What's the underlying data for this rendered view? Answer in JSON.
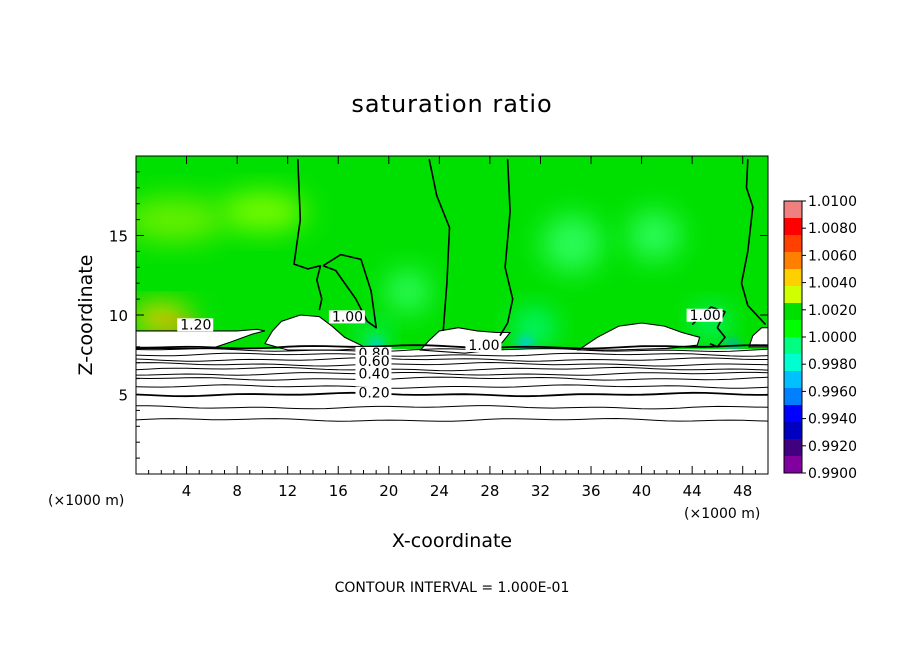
{
  "chart_data": {
    "type": "heatmap",
    "title": "saturation ratio",
    "xlabel": "X-coordinate",
    "ylabel": "Z-coordinate",
    "x_unit_left": "(×1000 m)",
    "x_unit_right": "(×1000 m)",
    "xlim": [
      0,
      50
    ],
    "ylim": [
      0,
      20
    ],
    "xticks": [
      4,
      8,
      12,
      16,
      20,
      24,
      28,
      32,
      36,
      40,
      44,
      48
    ],
    "yticks": [
      5,
      10,
      15
    ],
    "footer": "CONTOUR INTERVAL = 1.000E-01",
    "colorbar": {
      "min": 0.99,
      "max": 1.01,
      "labels": [
        "1.0100",
        "1.0080",
        "1.0060",
        "1.0040",
        "1.0020",
        "1.0000",
        "0.9980",
        "0.9960",
        "0.9940",
        "0.9920",
        "0.9900"
      ],
      "colors": [
        "#f08080",
        "#ff0000",
        "#ff4000",
        "#ff8000",
        "#ffd000",
        "#d0ff00",
        "#00e000",
        "#00ff00",
        "#00ff80",
        "#00ffd0",
        "#00c0ff",
        "#0080ff",
        "#0000ff",
        "#0000c0",
        "#400080",
        "#8000a0"
      ]
    },
    "contour_labels": [
      {
        "text": "1.20",
        "x": 3.5,
        "z": 9.1
      },
      {
        "text": "1.00",
        "x": 15.5,
        "z": 9.6
      },
      {
        "text": "1.00",
        "x": 26.3,
        "z": 7.8
      },
      {
        "text": "1.00",
        "x": 43.8,
        "z": 9.7
      },
      {
        "text": "0.80",
        "x": 17.6,
        "z": 7.3
      },
      {
        "text": "0.60",
        "x": 17.6,
        "z": 6.8
      },
      {
        "text": "0.40",
        "x": 17.6,
        "z": 6.0
      },
      {
        "text": "0.20",
        "x": 17.6,
        "z": 4.8
      }
    ],
    "horizontal_contours_z": [
      3.4,
      4.2,
      5.0,
      5.5,
      6.0,
      6.3,
      6.6,
      6.9,
      7.2,
      7.5,
      7.8,
      8.0
    ],
    "vertical_contours": [
      {
        "points": [
          [
            12.8,
            19.8
          ],
          [
            13.0,
            16
          ],
          [
            12.5,
            13.2
          ],
          [
            13.6,
            12.9
          ],
          [
            14.6,
            13.1
          ],
          [
            14.3,
            12.2
          ],
          [
            14.7,
            11
          ],
          [
            14.5,
            10.3
          ]
        ]
      },
      {
        "points": [
          [
            14.8,
            13.1
          ],
          [
            16.2,
            13.8
          ],
          [
            17.8,
            13.5
          ],
          [
            18.6,
            11.5
          ],
          [
            19.0,
            9.2
          ],
          [
            18.3,
            9.6
          ],
          [
            17.4,
            11
          ],
          [
            15.8,
            12.8
          ],
          [
            14.8,
            13.1
          ]
        ]
      },
      {
        "points": [
          [
            23.2,
            19.8
          ],
          [
            23.8,
            17.5
          ],
          [
            24.8,
            15.5
          ],
          [
            24.6,
            12
          ],
          [
            24.3,
            9
          ]
        ]
      },
      {
        "points": [
          [
            29.4,
            19.8
          ],
          [
            29.6,
            16.5
          ],
          [
            29.2,
            13
          ],
          [
            29.8,
            11
          ],
          [
            29.4,
            9.5
          ],
          [
            28.8,
            8.7
          ]
        ]
      },
      {
        "points": [
          [
            48.4,
            19.8
          ],
          [
            48.3,
            18
          ],
          [
            48.8,
            16.8
          ],
          [
            48.4,
            14
          ],
          [
            47.9,
            12
          ],
          [
            48.4,
            10.6
          ],
          [
            49.8,
            9.4
          ]
        ]
      },
      {
        "points": [
          [
            44.0,
            9.4
          ],
          [
            45.5,
            10.5
          ],
          [
            46.6,
            10.2
          ],
          [
            46.0,
            9.2
          ],
          [
            46.6,
            8.6
          ],
          [
            46.0,
            8.0
          ],
          [
            45.4,
            8.2
          ]
        ]
      }
    ],
    "white_regions": [
      {
        "points": [
          [
            0,
            7.9
          ],
          [
            0,
            9.0
          ],
          [
            6,
            9.0
          ],
          [
            8,
            9.0
          ],
          [
            9.6,
            9.1
          ],
          [
            10.2,
            9.0
          ],
          [
            9.2,
            8.8
          ],
          [
            7.5,
            8.3
          ],
          [
            6.0,
            7.9
          ]
        ]
      },
      {
        "points": [
          [
            10.2,
            8.2
          ],
          [
            10.8,
            9.0
          ],
          [
            11.5,
            9.6
          ],
          [
            13.0,
            10.0
          ],
          [
            14.5,
            9.9
          ],
          [
            15.5,
            9.3
          ],
          [
            16.5,
            8.6
          ],
          [
            17.8,
            8.1
          ],
          [
            18.2,
            7.9
          ],
          [
            16,
            7.8
          ],
          [
            12,
            7.8
          ]
        ]
      },
      {
        "points": [
          [
            22.5,
            7.8
          ],
          [
            23.2,
            8.4
          ],
          [
            24.0,
            9.0
          ],
          [
            25.5,
            9.2
          ],
          [
            27.0,
            9.0
          ],
          [
            28.5,
            8.9
          ],
          [
            29.6,
            8.9
          ],
          [
            29.0,
            8.3
          ],
          [
            28.2,
            7.8
          ],
          [
            26,
            7.6
          ]
        ]
      },
      {
        "points": [
          [
            35.0,
            7.8
          ],
          [
            36.5,
            8.6
          ],
          [
            38.2,
            9.3
          ],
          [
            40.0,
            9.5
          ],
          [
            41.8,
            9.3
          ],
          [
            43.2,
            8.9
          ],
          [
            44.6,
            8.6
          ],
          [
            44.4,
            8.1
          ],
          [
            42,
            7.9
          ],
          [
            38,
            7.8
          ]
        ]
      },
      {
        "points": [
          [
            48.5,
            8.0
          ],
          [
            48.8,
            8.7
          ],
          [
            49.5,
            9.2
          ],
          [
            50,
            9.2
          ],
          [
            50,
            8.0
          ]
        ]
      }
    ],
    "moist_patches": [
      {
        "x": 2.0,
        "z": 9.8,
        "r": 2.4,
        "color": "#ffd000"
      },
      {
        "x": 3.2,
        "z": 9.3,
        "r": 1.2,
        "color": "#ff8000"
      },
      {
        "x": 10.0,
        "z": 16.5,
        "r": 3.5,
        "color": "#7cfc00"
      },
      {
        "x": 3.0,
        "z": 16.0,
        "r": 4.0,
        "color": "#66f000"
      }
    ],
    "dry_patches": [
      {
        "x": 18.8,
        "z": 8.6,
        "r": 1.8,
        "color": "#00ffa0"
      },
      {
        "x": 19.0,
        "z": 8.1,
        "r": 0.9,
        "color": "#00d0ff"
      },
      {
        "x": 31.5,
        "z": 9.2,
        "r": 2.6,
        "color": "#00ff90"
      },
      {
        "x": 30.8,
        "z": 8.2,
        "r": 1.0,
        "color": "#00c8ff"
      },
      {
        "x": 45.5,
        "z": 9.5,
        "r": 2.2,
        "color": "#00ff90"
      },
      {
        "x": 47.2,
        "z": 8.1,
        "r": 0.8,
        "color": "#00a0ff"
      },
      {
        "x": 34.5,
        "z": 14.5,
        "r": 4.0,
        "color": "#33ff66"
      },
      {
        "x": 41.0,
        "z": 15.0,
        "r": 3.5,
        "color": "#33ff66"
      },
      {
        "x": 21.5,
        "z": 11.5,
        "r": 3.0,
        "color": "#33ff66"
      }
    ]
  }
}
